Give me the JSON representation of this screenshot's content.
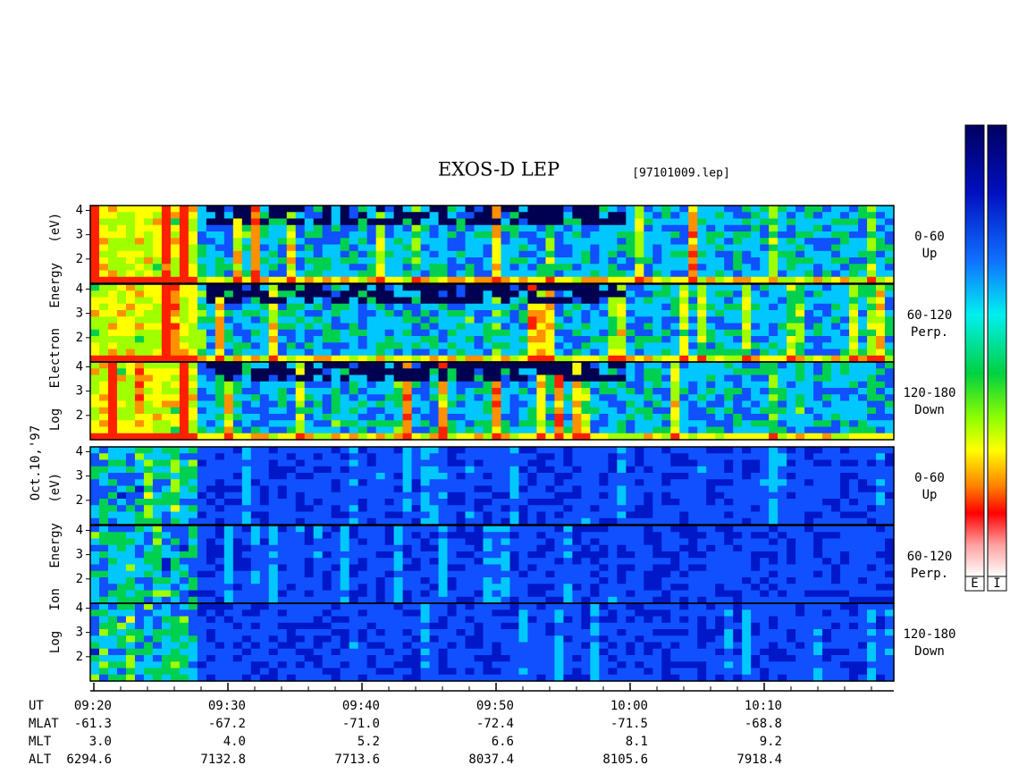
{
  "header": {
    "title": "EXOS-D LEP",
    "file": "[97101009.lep]",
    "date_label": "Oct.10,'97"
  },
  "electron_ylabel": "Log Electron Energy (eV)",
  "ion_ylabel": "Log Ion Energy (eV)",
  "ylim": [
    1,
    4.2
  ],
  "yticks": [
    2,
    3,
    4
  ],
  "panels": [
    {
      "species": "electron",
      "pitch": "0-60",
      "direction": "Up"
    },
    {
      "species": "electron",
      "pitch": "60-120",
      "direction": "Perp."
    },
    {
      "species": "electron",
      "pitch": "120-180",
      "direction": "Down"
    },
    {
      "species": "ion",
      "pitch": "0-60",
      "direction": "Up"
    },
    {
      "species": "ion",
      "pitch": "60-120",
      "direction": "Perp."
    },
    {
      "species": "ion",
      "pitch": "120-180",
      "direction": "Down"
    }
  ],
  "ephemeris": {
    "row_labels": [
      "UT",
      "MLAT",
      "MLT",
      "ALT"
    ],
    "columns": [
      [
        "09:20",
        "-61.3",
        "3.0",
        "6294.6"
      ],
      [
        "09:30",
        "-67.2",
        "4.0",
        "7132.8"
      ],
      [
        "09:40",
        "-71.0",
        "5.2",
        "7713.6"
      ],
      [
        "09:50",
        "-72.4",
        "6.6",
        "8037.4"
      ],
      [
        "10:00",
        "-71.5",
        "8.1",
        "8105.6"
      ],
      [
        "10:10",
        "-68.8",
        "9.2",
        "7918.4"
      ]
    ]
  },
  "colorbar_labels": [
    "E",
    "I"
  ]
}
